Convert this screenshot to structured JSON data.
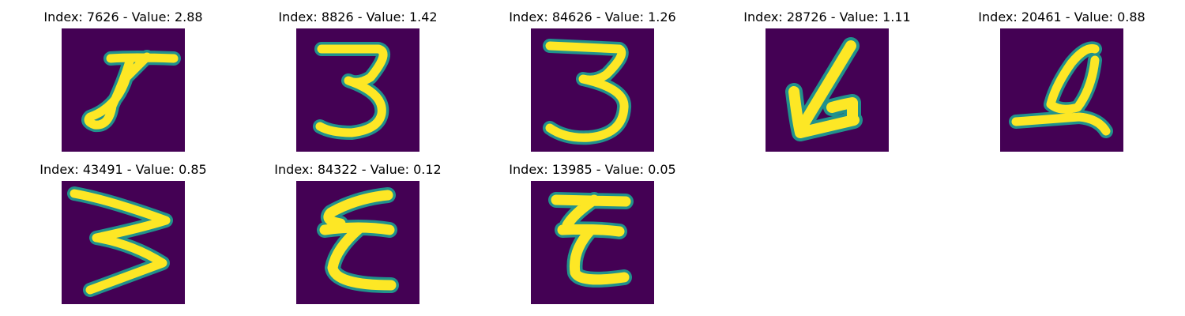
{
  "colors": {
    "background": "#440154",
    "stroke_edge": "#21918c",
    "stroke_core": "#fde725"
  },
  "panels": [
    {
      "title": "Index: 7626 - Value: 2.88",
      "glyph": "handwritten-fancy-d"
    },
    {
      "title": "Index: 8826 - Value: 1.42",
      "glyph": "handwritten-3"
    },
    {
      "title": "Index: 84626 - Value: 1.26",
      "glyph": "handwritten-3"
    },
    {
      "title": "Index: 28726 - Value: 1.11",
      "glyph": "handwritten-arrow-k"
    },
    {
      "title": "Index: 20461 - Value: 0.88",
      "glyph": "handwritten-script-q"
    },
    {
      "title": "Index: 43491 - Value: 0.85",
      "glyph": "handwritten-3"
    },
    {
      "title": "Index: 84322 - Value: 0.12",
      "glyph": "handwritten-epsilon"
    },
    {
      "title": "Index: 13985 - Value: 0.05",
      "glyph": "handwritten-epsilon"
    }
  ]
}
